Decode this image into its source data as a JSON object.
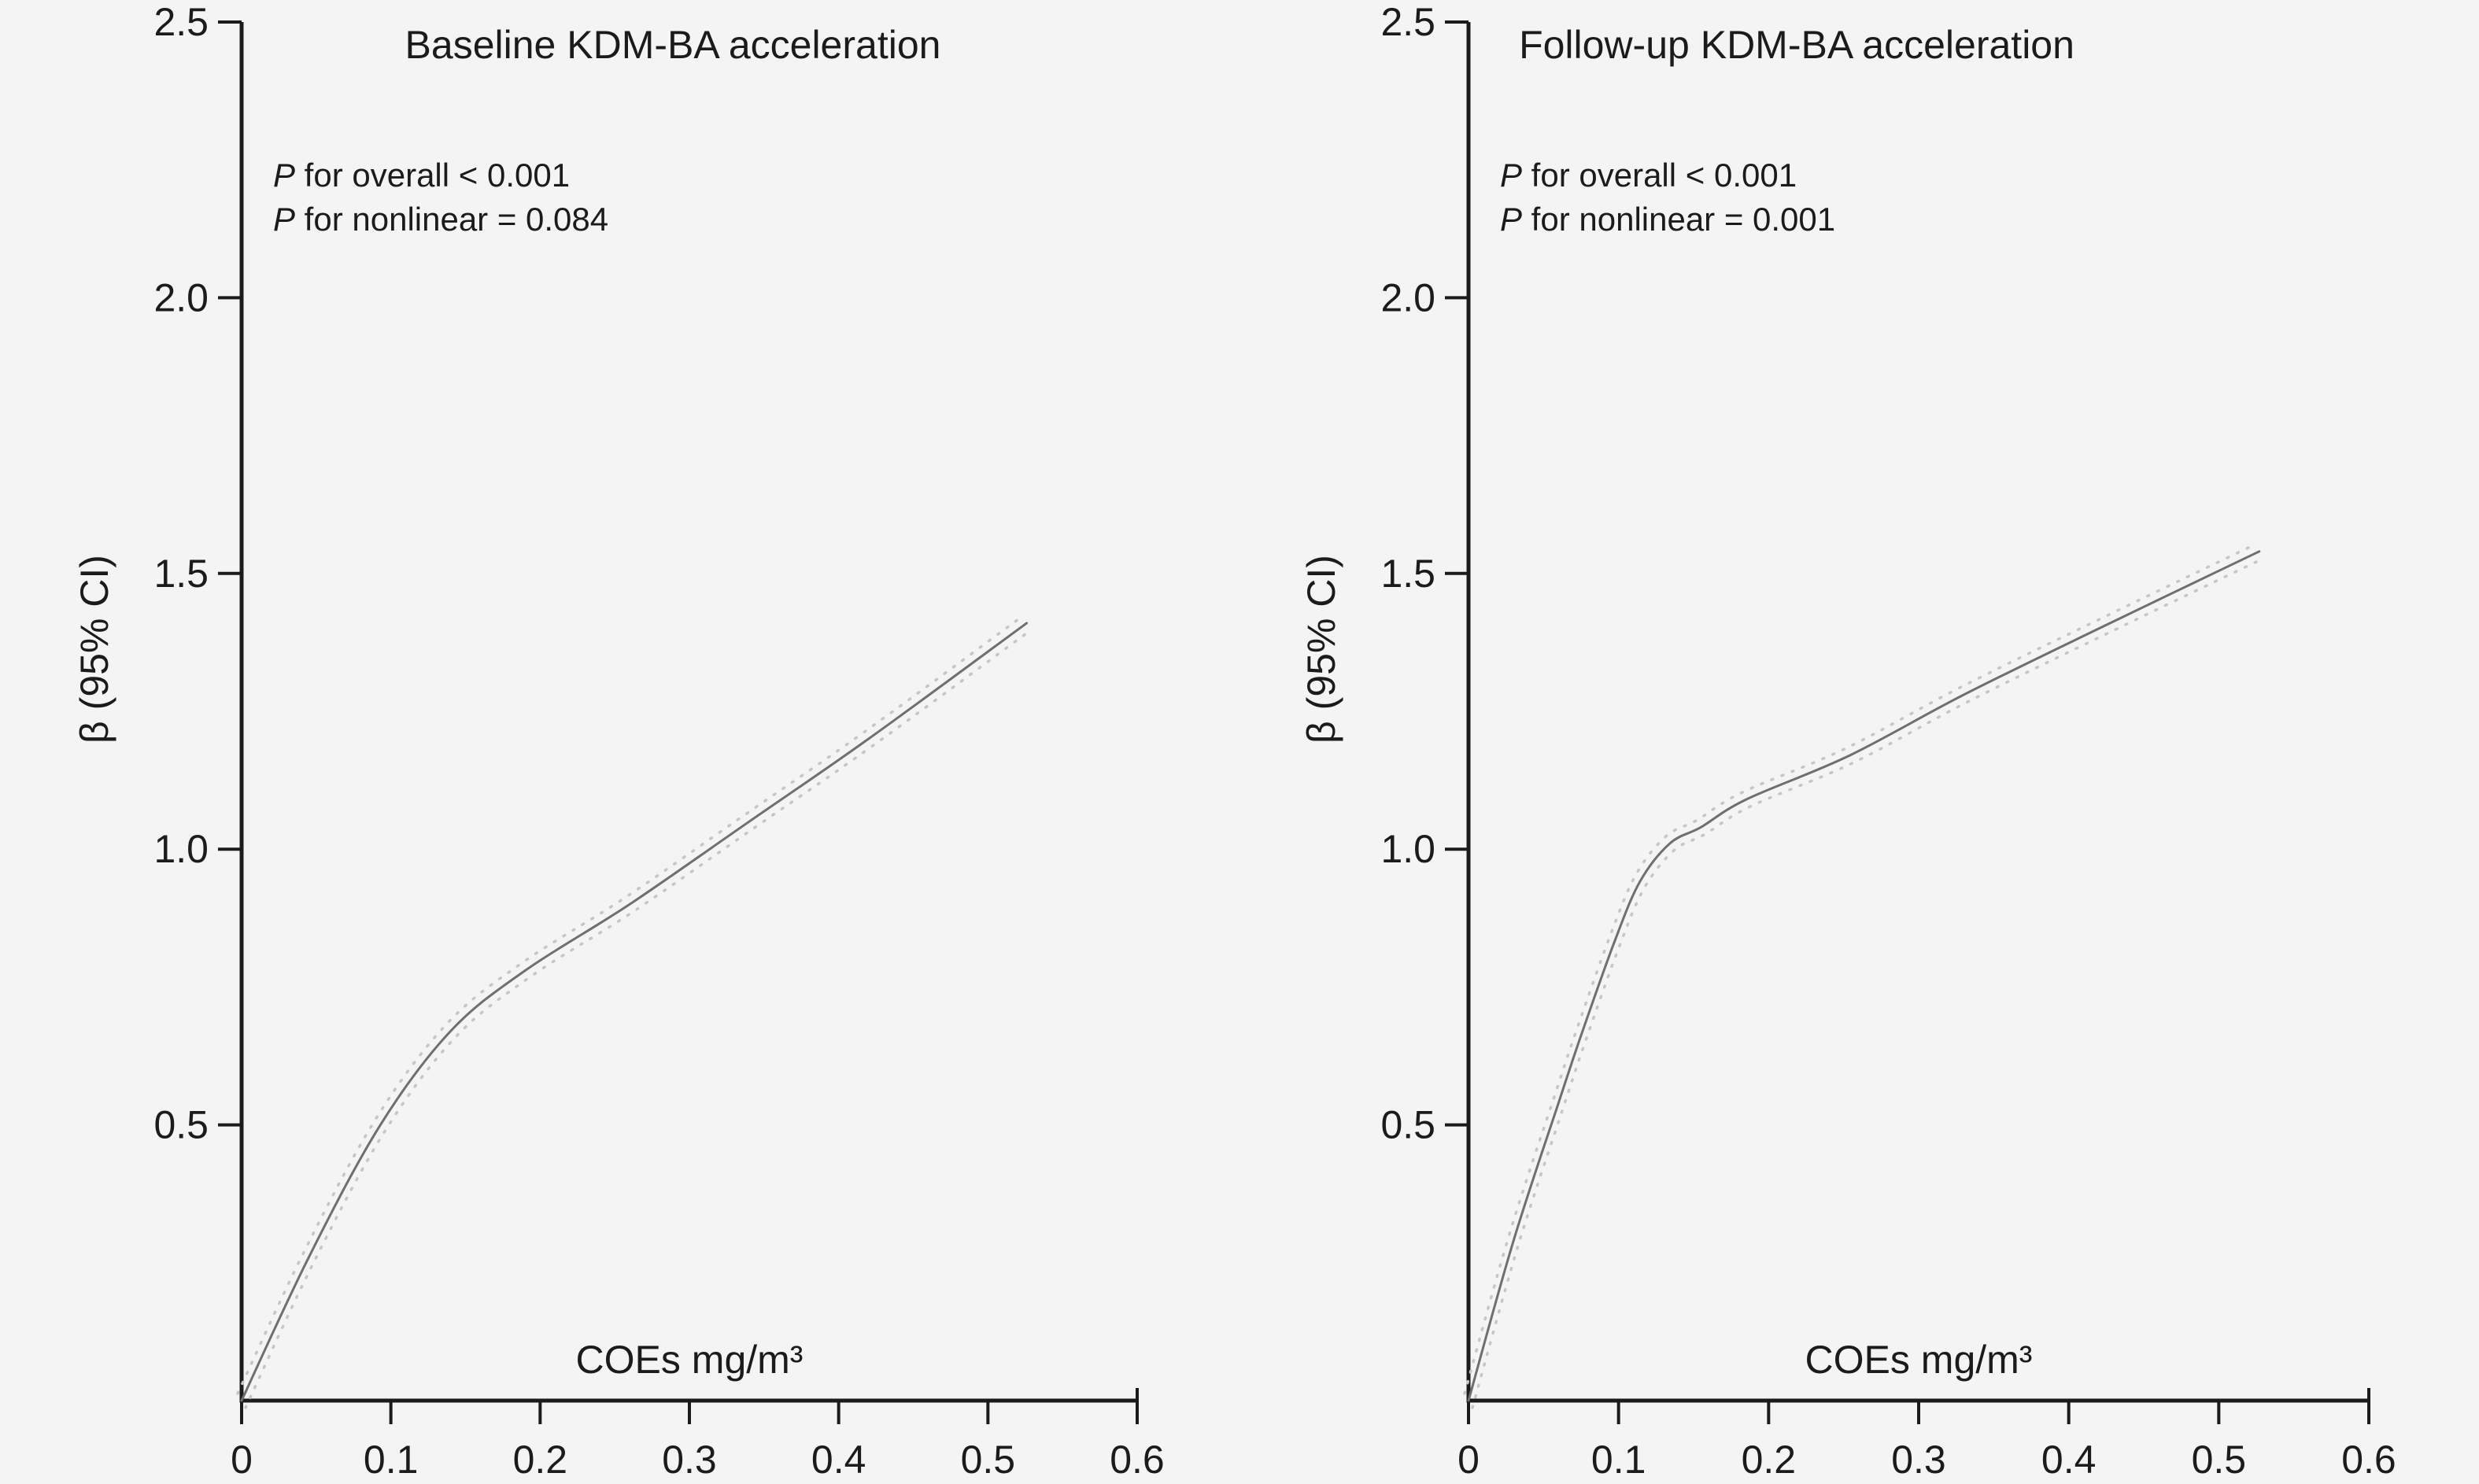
{
  "figure": {
    "background": "#f4f4f4",
    "text_color": "#1b1b1b",
    "axis_color": "#1b1b1b",
    "curve_color": "#6f6f6f",
    "ci_color": "#c6c6c6"
  },
  "chart_data": [
    {
      "type": "line",
      "title": "Baseline KDM-BA acceleration",
      "xlabel": "COEs mg/m³",
      "ylabel": "β (95% CI)",
      "xlim": [
        0,
        0.6
      ],
      "ylim": [
        0,
        2.5
      ],
      "grid": false,
      "legend": "none",
      "annotations": [
        {
          "italic": "P",
          "text": " for overall < 0.001"
        },
        {
          "italic": "P",
          "text": " for nonlinear = 0.084"
        }
      ],
      "xticks": [
        {
          "label": "0",
          "value": 0.0
        },
        {
          "label": "0.1",
          "value": 0.1
        },
        {
          "label": "0.2",
          "value": 0.2
        },
        {
          "label": "0.3",
          "value": 0.3
        },
        {
          "label": "0.4",
          "value": 0.4
        },
        {
          "label": "0.5",
          "value": 0.5
        },
        {
          "label": "0.6",
          "value": 0.6
        }
      ],
      "yticks": [
        {
          "label": "2.5",
          "value": 2.5
        },
        {
          "label": "2.0",
          "value": 2.0
        },
        {
          "label": "1.5",
          "value": 1.5
        },
        {
          "label": "1.0",
          "value": 1.0
        },
        {
          "label": "0.5",
          "value": 0.5
        }
      ],
      "series": [
        {
          "name": "spline-estimate",
          "style": "solid",
          "points": [
            [
              0,
              0
            ],
            [
              0.045,
              0.26
            ],
            [
              0.093,
              0.5
            ],
            [
              0.14,
              0.67
            ],
            [
              0.19,
              0.78
            ],
            [
              0.26,
              0.9
            ],
            [
              0.34,
              1.05
            ],
            [
              0.42,
              1.2
            ],
            [
              0.526,
              1.41
            ]
          ]
        },
        {
          "name": "ci-95-dotted",
          "style": "dotted",
          "derived_from": "spline-estimate"
        }
      ]
    },
    {
      "type": "line",
      "title": "Follow-up KDM-BA acceleration",
      "xlabel": "COEs mg/m³",
      "ylabel": "β (95% CI)",
      "xlim": [
        0,
        0.6
      ],
      "ylim": [
        0,
        2.5
      ],
      "grid": false,
      "legend": "none",
      "annotations": [
        {
          "italic": "P",
          "text": " for overall < 0.001"
        },
        {
          "italic": "P",
          "text": " for nonlinear = 0.001"
        }
      ],
      "xticks": [
        {
          "label": "0",
          "value": 0.0
        },
        {
          "label": "0.1",
          "value": 0.1
        },
        {
          "label": "0.2",
          "value": 0.2
        },
        {
          "label": "0.3",
          "value": 0.3
        },
        {
          "label": "0.4",
          "value": 0.4
        },
        {
          "label": "0.5",
          "value": 0.5
        },
        {
          "label": "0.6",
          "value": 0.6
        }
      ],
      "yticks": [
        {
          "label": "2.5",
          "value": 2.5
        },
        {
          "label": "2.0",
          "value": 2.0
        },
        {
          "label": "1.5",
          "value": 1.5
        },
        {
          "label": "1.0",
          "value": 1.0
        },
        {
          "label": "0.5",
          "value": 0.5
        }
      ],
      "series": [
        {
          "name": "spline-estimate",
          "style": "solid",
          "points": [
            [
              0,
              0
            ],
            [
              0.03,
              0.29
            ],
            [
              0.06,
              0.54
            ],
            [
              0.076,
              0.67
            ],
            [
              0.097,
              0.83
            ],
            [
              0.114,
              0.94
            ],
            [
              0.134,
              1.01
            ],
            [
              0.155,
              1.04
            ],
            [
              0.185,
              1.09
            ],
            [
              0.254,
              1.17
            ],
            [
              0.33,
              1.28
            ],
            [
              0.42,
              1.4
            ],
            [
              0.527,
              1.54
            ]
          ]
        },
        {
          "name": "ci-95-dotted",
          "style": "dotted",
          "derived_from": "spline-estimate"
        }
      ]
    }
  ]
}
